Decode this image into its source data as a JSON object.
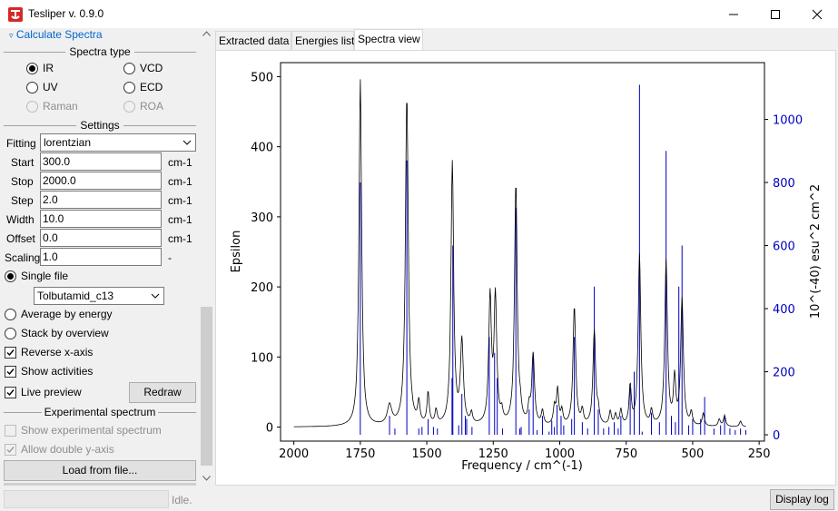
{
  "window": {
    "title": "Tesliper v. 0.9.0"
  },
  "left_panel": {
    "collapsible_label": "Calculate Spectra",
    "spectra_type": {
      "title": "Spectra type",
      "options": [
        {
          "label": "IR",
          "selected": true,
          "enabled": true
        },
        {
          "label": "VCD",
          "selected": false,
          "enabled": true
        },
        {
          "label": "UV",
          "selected": false,
          "enabled": true
        },
        {
          "label": "ECD",
          "selected": false,
          "enabled": true
        },
        {
          "label": "Raman",
          "selected": false,
          "enabled": false
        },
        {
          "label": "ROA",
          "selected": false,
          "enabled": false
        }
      ]
    },
    "settings": {
      "title": "Settings",
      "fitting_label": "Fitting",
      "fitting_value": "lorentzian",
      "rows": [
        {
          "label": "Start",
          "value": "300.0",
          "unit": "cm-1"
        },
        {
          "label": "Stop",
          "value": "2000.0",
          "unit": "cm-1"
        },
        {
          "label": "Step",
          "value": "2.0",
          "unit": "cm-1"
        },
        {
          "label": "Width",
          "value": "10.0",
          "unit": "cm-1"
        },
        {
          "label": "Offset",
          "value": "0.0",
          "unit": "cm-1"
        },
        {
          "label": "Scaling",
          "value": "1.0",
          "unit": "-"
        }
      ]
    },
    "mode": {
      "single_file": "Single file",
      "file_value": "Tolbutamid_c13",
      "average": "Average by energy",
      "stack": "Stack by overview"
    },
    "checks": {
      "reverse": "Reverse x-axis",
      "show_activities": "Show activities",
      "live_preview": "Live preview"
    },
    "redraw": "Redraw",
    "experimental": {
      "title": "Experimental spectrum",
      "show": "Show experimental spectrum",
      "double": "Allow double y-axis",
      "load": "Load from file..."
    }
  },
  "tabs": [
    {
      "label": "Extracted data",
      "active": false
    },
    {
      "label": "Energies list",
      "active": false
    },
    {
      "label": "Spectra view",
      "active": true
    }
  ],
  "status": {
    "text": "Idle.",
    "log_button": "Display log"
  },
  "chart_data": {
    "type": "line",
    "xlabel": "Frequency / cm^(-1)",
    "ylabel": "Epsilon",
    "y2label": "10^(-40) esu^2 cm^2",
    "xlim": [
      2050,
      230
    ],
    "ylim": [
      -20,
      520
    ],
    "y2lim": [
      -20,
      1180
    ],
    "x_ticks": [
      "2000",
      "1750",
      "1500",
      "1250",
      "1000",
      "750",
      "500",
      "250"
    ],
    "y_ticks": [
      "0",
      "100",
      "200",
      "300",
      "400",
      "500"
    ],
    "y2_ticks": [
      "0",
      "200",
      "400",
      "600",
      "800",
      "1000"
    ],
    "colors": {
      "spectrum": "#000000",
      "activities": "#0000c0"
    },
    "activities": [
      [
        1750,
        800
      ],
      [
        1640,
        60
      ],
      [
        1620,
        20
      ],
      [
        1575,
        870
      ],
      [
        1530,
        20
      ],
      [
        1518,
        25
      ],
      [
        1495,
        50
      ],
      [
        1475,
        25
      ],
      [
        1460,
        20
      ],
      [
        1405,
        180
      ],
      [
        1402,
        600
      ],
      [
        1380,
        30
      ],
      [
        1368,
        130
      ],
      [
        1355,
        60
      ],
      [
        1350,
        50
      ],
      [
        1330,
        25
      ],
      [
        1265,
        310
      ],
      [
        1245,
        260
      ],
      [
        1235,
        180
      ],
      [
        1215,
        20
      ],
      [
        1165,
        720
      ],
      [
        1150,
        20
      ],
      [
        1145,
        25
      ],
      [
        1115,
        80
      ],
      [
        1100,
        260
      ],
      [
        1085,
        15
      ],
      [
        1065,
        60
      ],
      [
        1040,
        10
      ],
      [
        1030,
        45
      ],
      [
        1020,
        25
      ],
      [
        1010,
        95
      ],
      [
        995,
        60
      ],
      [
        985,
        30
      ],
      [
        955,
        50
      ],
      [
        945,
        310
      ],
      [
        915,
        40
      ],
      [
        895,
        20
      ],
      [
        870,
        470
      ],
      [
        855,
        80
      ],
      [
        835,
        20
      ],
      [
        815,
        25
      ],
      [
        795,
        40
      ],
      [
        780,
        20
      ],
      [
        770,
        60
      ],
      [
        735,
        150
      ],
      [
        720,
        200
      ],
      [
        700,
        1110
      ],
      [
        690,
        10
      ],
      [
        655,
        70
      ],
      [
        625,
        40
      ],
      [
        600,
        900
      ],
      [
        580,
        60
      ],
      [
        565,
        40
      ],
      [
        552,
        470
      ],
      [
        540,
        600
      ],
      [
        515,
        30
      ],
      [
        500,
        50
      ],
      [
        470,
        50
      ],
      [
        455,
        120
      ],
      [
        420,
        20
      ],
      [
        395,
        30
      ],
      [
        380,
        65
      ],
      [
        360,
        20
      ],
      [
        340,
        15
      ],
      [
        320,
        20
      ],
      [
        300,
        15
      ]
    ],
    "spectrum_peaks": [
      [
        1750,
        12,
        495
      ],
      [
        1640,
        20,
        28
      ],
      [
        1575,
        13,
        470
      ],
      [
        1530,
        10,
        30
      ],
      [
        1495,
        10,
        45
      ],
      [
        1465,
        10,
        20
      ],
      [
        1404,
        12,
        375
      ],
      [
        1368,
        13,
        118
      ],
      [
        1332,
        10,
        15
      ],
      [
        1262,
        12,
        180
      ],
      [
        1242,
        12,
        180
      ],
      [
        1218,
        10,
        15
      ],
      [
        1165,
        12,
        345
      ],
      [
        1148,
        10,
        15
      ],
      [
        1115,
        10,
        22
      ],
      [
        1100,
        12,
        100
      ],
      [
        1065,
        10,
        20
      ],
      [
        1020,
        10,
        25
      ],
      [
        1008,
        10,
        50
      ],
      [
        992,
        10,
        20
      ],
      [
        945,
        12,
        170
      ],
      [
        915,
        10,
        20
      ],
      [
        870,
        12,
        135
      ],
      [
        855,
        10,
        18
      ],
      [
        810,
        10,
        20
      ],
      [
        790,
        10,
        15
      ],
      [
        770,
        10,
        22
      ],
      [
        735,
        10,
        55
      ],
      [
        700,
        12,
        245
      ],
      [
        655,
        10,
        20
      ],
      [
        600,
        12,
        235
      ],
      [
        568,
        10,
        65
      ],
      [
        540,
        12,
        180
      ],
      [
        505,
        10,
        18
      ],
      [
        460,
        10,
        18
      ],
      [
        400,
        10,
        10
      ],
      [
        380,
        10,
        15
      ],
      [
        320,
        10,
        8
      ]
    ]
  }
}
